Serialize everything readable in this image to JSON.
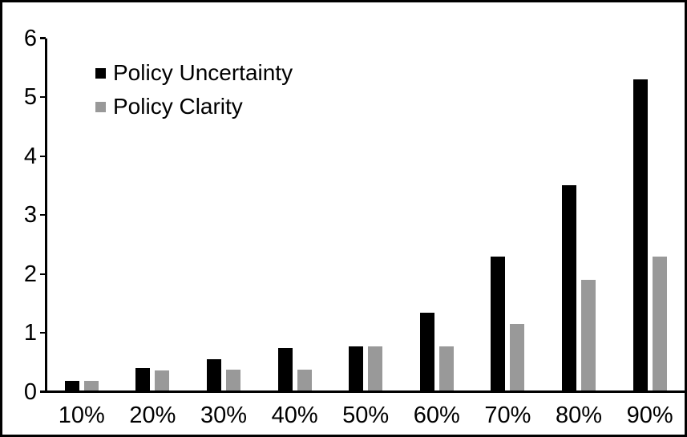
{
  "chart_data": {
    "type": "bar",
    "categories": [
      "10%",
      "20%",
      "30%",
      "40%",
      "50%",
      "60%",
      "70%",
      "80%",
      "90%"
    ],
    "series": [
      {
        "name": "Policy Uncertainty",
        "color": "#000000",
        "values": [
          0.19,
          0.4,
          0.56,
          0.75,
          0.77,
          1.34,
          2.3,
          3.5,
          5.3
        ]
      },
      {
        "name": "Policy Clarity",
        "color": "#999999",
        "values": [
          0.19,
          0.37,
          0.38,
          0.38,
          0.77,
          0.77,
          1.15,
          1.9,
          2.3
        ]
      }
    ],
    "yticks": [
      0,
      1,
      2,
      3,
      4,
      5,
      6
    ],
    "ylim": [
      0,
      6
    ],
    "grid": false,
    "legend_position": "top-left",
    "frame_color": "#000000",
    "axis_color": "#000000",
    "background_color": "#ffffff"
  }
}
